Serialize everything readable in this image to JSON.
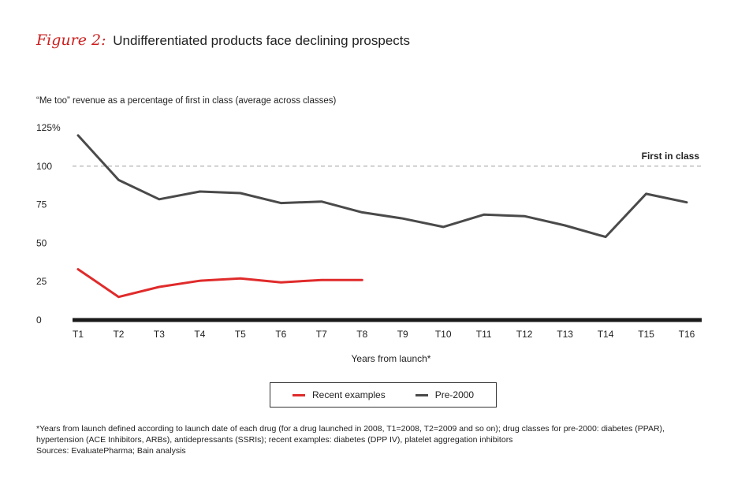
{
  "header": {
    "figure_label": "Figure 2:",
    "title": "Undifferentiated products face declining prospects"
  },
  "chart_data": {
    "type": "line",
    "title": "Undifferentiated products face declining prospects",
    "subtitle": "“Me too” revenue as a percentage of first in class (average across classes)",
    "xlabel": "Years from launch*",
    "ylabel": "",
    "categories": [
      "T1",
      "T2",
      "T3",
      "T4",
      "T5",
      "T6",
      "T7",
      "T8",
      "T9",
      "T10",
      "T11",
      "T12",
      "T13",
      "T14",
      "T15",
      "T16"
    ],
    "ylim": [
      0,
      125
    ],
    "yticks": [
      0,
      25,
      50,
      75,
      100,
      125
    ],
    "ytick_labels": [
      "0",
      "25",
      "50",
      "75",
      "100",
      "125%"
    ],
    "reference_line": {
      "value": 100,
      "label": "First in class",
      "style": "dashed",
      "color": "#aaaaaa"
    },
    "series": [
      {
        "name": "Recent examples",
        "color": "#e02b2b",
        "values": [
          33,
          15,
          21.5,
          25.5,
          27,
          24.5,
          26,
          26,
          null,
          null,
          null,
          null,
          null,
          null,
          null,
          null
        ]
      },
      {
        "name": "Pre-2000",
        "color": "#4a4a4a",
        "values": [
          120,
          91,
          78.5,
          83.5,
          82.5,
          76,
          77,
          70,
          66,
          60.5,
          68.5,
          67.5,
          61.5,
          54,
          82,
          76.5
        ]
      }
    ],
    "legend_position": "bottom-center",
    "grid": false
  },
  "legend": {
    "items": [
      {
        "label": "Recent examples",
        "color": "#e02b2b"
      },
      {
        "label": "Pre-2000",
        "color": "#4a4a4a"
      }
    ]
  },
  "footnotes": {
    "line1": "*Years from launch defined according to launch date of each drug (for a drug launched in 2008, T1=2008, T2=2009 and so on); drug classes for pre-2000: diabetes (PPAR),",
    "line2": "hypertension (ACE Inhibitors, ARBs), antidepressants (SSRIs); recent examples: diabetes (DPP IV), platelet aggregation inhibitors",
    "sources": "Sources: EvaluatePharma; Bain analysis"
  }
}
